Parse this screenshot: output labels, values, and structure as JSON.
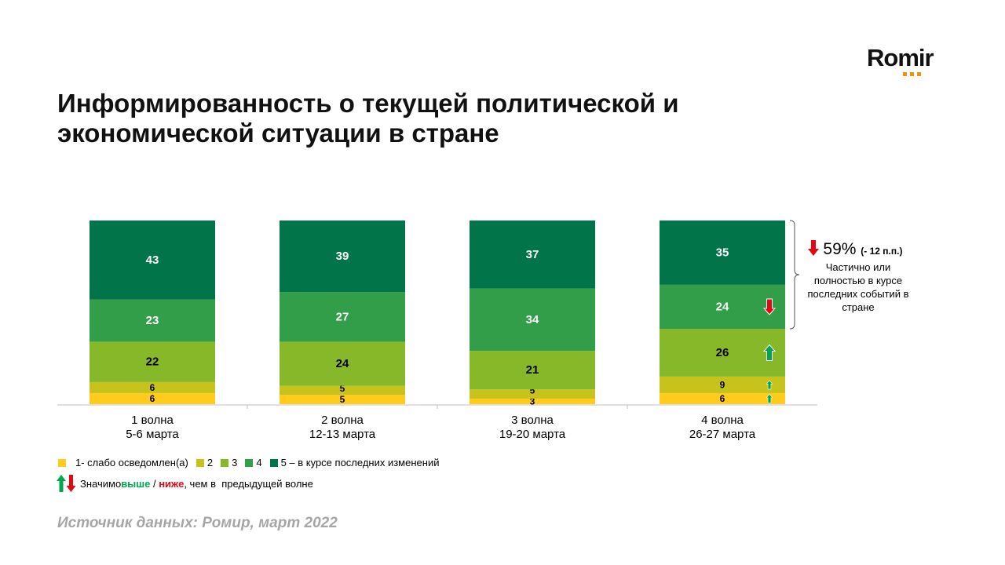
{
  "logo": {
    "text": "Romir",
    "accent_color": "#f39200"
  },
  "title": "Информированность о текущей политической и экономической ситуации в стране",
  "chart_data": {
    "type": "bar",
    "stacked": true,
    "categories": [
      {
        "line1": "1 волна",
        "line2": "5-6 марта"
      },
      {
        "line1": "2 волна",
        "line2": "12-13 марта"
      },
      {
        "line1": "3 волна",
        "line2": "19-20 марта"
      },
      {
        "line1": "4 волна",
        "line2": "26-27 марта"
      }
    ],
    "ylim": [
      0,
      100
    ],
    "grid": false,
    "legend_placement": "bottom",
    "series": [
      {
        "name": "1- слабо осведомлен(а)",
        "color": "#ffcc1d",
        "values": [
          6,
          5,
          3,
          6
        ],
        "label_color": "#000"
      },
      {
        "name": "2",
        "color": "#c8c31c",
        "values": [
          6,
          5,
          5,
          9
        ],
        "label_color": "#000"
      },
      {
        "name": "3",
        "color": "#86b82a",
        "values": [
          22,
          24,
          21,
          26
        ],
        "label_color": "#000"
      },
      {
        "name": "4",
        "color": "#339e4a",
        "values": [
          23,
          27,
          34,
          24
        ],
        "label_color": "#fff"
      },
      {
        "name": "5 – в курсе последних изменений",
        "color": "#02744a",
        "values": [
          43,
          39,
          37,
          35
        ],
        "label_color": "#fff"
      }
    ],
    "significance": [
      {
        "category": 3,
        "series": 0,
        "direction": "up"
      },
      {
        "category": 3,
        "series": 1,
        "direction": "up"
      },
      {
        "category": 3,
        "series": 2,
        "direction": "up"
      },
      {
        "category": 3,
        "series": 3,
        "direction": "down"
      }
    ],
    "annotation": {
      "value": "59%",
      "change": "(- 12 п.п.)",
      "direction": "down",
      "text": "Частично или полностью в курсе последних событий в стране"
    }
  },
  "significance_legend": {
    "prefix": "Значимо ",
    "up": "выше",
    "sep": " / ",
    "down": "ниже",
    "suffix": ", чем в  предыдущей волне",
    "up_color": "#00a650",
    "down_color": "#e30613"
  },
  "source": "Источник данных: Ромир, март 2022"
}
